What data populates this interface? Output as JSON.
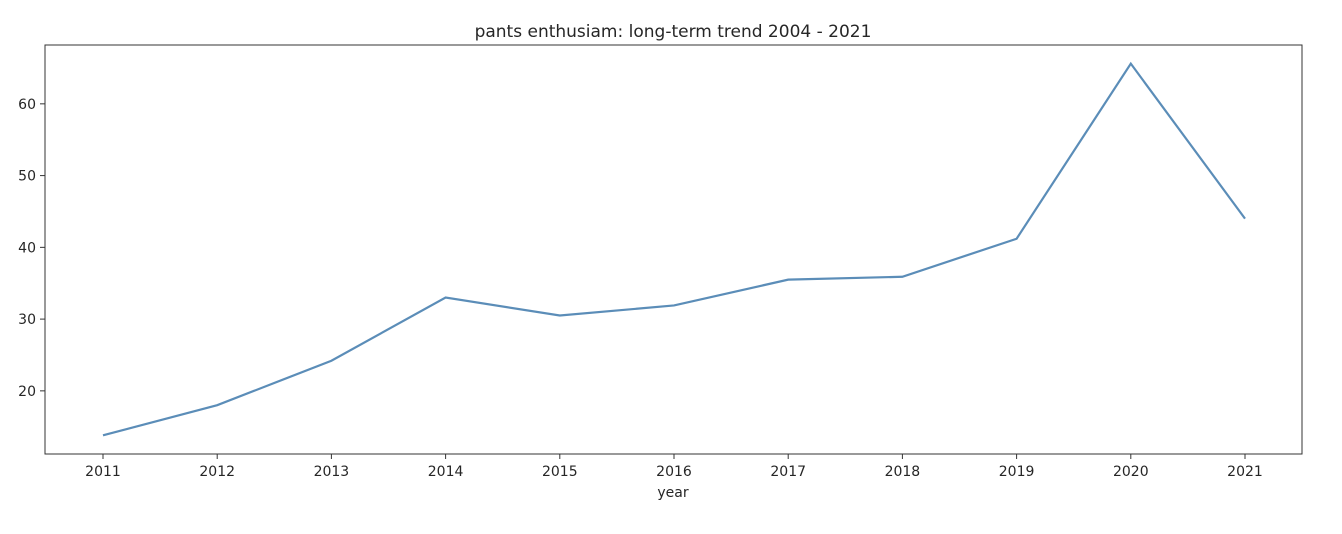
{
  "chart_data": {
    "type": "line",
    "title": "pants enthusiam: long-term trend 2004 - 2021",
    "xlabel": "year",
    "ylabel": "",
    "x": [
      "2011",
      "2012",
      "2013",
      "2014",
      "2015",
      "2016",
      "2017",
      "2018",
      "2019",
      "2020",
      "2021"
    ],
    "series": [
      {
        "values": [
          13.8,
          18.0,
          24.2,
          33.0,
          30.5,
          31.9,
          35.5,
          35.9,
          41.2,
          65.6,
          44.0
        ],
        "color": "#5b8db8"
      }
    ],
    "y_ticks": [
      20,
      30,
      40,
      50,
      60
    ],
    "ylim": [
      11.2,
      68.2
    ],
    "grid": false,
    "legend": "none"
  }
}
